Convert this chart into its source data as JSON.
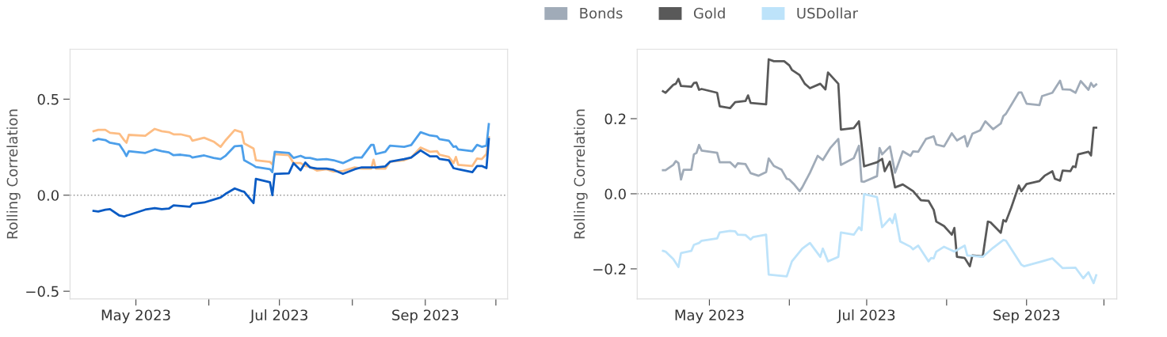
{
  "chart_data": [
    {
      "type": "line",
      "ylabel": "Rolling Correlation",
      "x": [
        "2023-04-13",
        "2023-04-15",
        "2023-04-18",
        "2023-04-20",
        "2023-04-24",
        "2023-04-26",
        "2023-04-27",
        "2023-04-28",
        "2023-05-05",
        "2023-05-09",
        "2023-05-12",
        "2023-05-15",
        "2023-05-17",
        "2023-05-20",
        "2023-05-24",
        "2023-05-25",
        "2023-05-30",
        "2023-06-03",
        "2023-06-06",
        "2023-06-08",
        "2023-06-12",
        "2023-06-15",
        "2023-06-16",
        "2023-06-20",
        "2023-06-21",
        "2023-06-27",
        "2023-06-28",
        "2023-06-29",
        "2023-07-05",
        "2023-07-07",
        "2023-07-10",
        "2023-07-12",
        "2023-07-14",
        "2023-07-17",
        "2023-07-21",
        "2023-07-24",
        "2023-07-28",
        "2023-08-02",
        "2023-08-05",
        "2023-08-09",
        "2023-08-10",
        "2023-08-11",
        "2023-08-15",
        "2023-08-17",
        "2023-08-23",
        "2023-08-26",
        "2023-08-30",
        "2023-09-03",
        "2023-09-06",
        "2023-09-07",
        "2023-09-11",
        "2023-09-13",
        "2023-09-14",
        "2023-09-15",
        "2023-09-21",
        "2023-09-23",
        "2023-09-25",
        "2023-09-27",
        "2023-09-28"
      ],
      "series": [
        {
          "color": "#fdbd84",
          "values": [
            0.333,
            0.34,
            0.34,
            0.325,
            0.32,
            0.287,
            0.273,
            0.314,
            0.309,
            0.345,
            0.333,
            0.328,
            0.317,
            0.317,
            0.305,
            0.284,
            0.299,
            0.279,
            0.252,
            0.284,
            0.339,
            0.328,
            0.27,
            0.243,
            0.182,
            0.173,
            0.16,
            0.214,
            0.208,
            0.167,
            0.167,
            0.152,
            0.148,
            0.128,
            0.135,
            0.123,
            0.126,
            0.145,
            0.138,
            0.138,
            0.185,
            0.138,
            0.138,
            0.174,
            0.182,
            0.196,
            0.248,
            0.226,
            0.229,
            0.211,
            0.199,
            0.167,
            0.199,
            0.158,
            0.152,
            0.191,
            0.188,
            0.214,
            0.302
          ]
        },
        {
          "color": "#4c9fea",
          "values": [
            0.284,
            0.293,
            0.287,
            0.273,
            0.264,
            0.226,
            0.204,
            0.229,
            0.22,
            0.238,
            0.229,
            0.223,
            0.208,
            0.211,
            0.204,
            0.196,
            0.207,
            0.194,
            0.188,
            0.204,
            0.255,
            0.258,
            0.182,
            0.155,
            0.147,
            0.135,
            0.12,
            0.226,
            0.22,
            0.194,
            0.205,
            0.194,
            0.194,
            0.185,
            0.188,
            0.182,
            0.167,
            0.196,
            0.196,
            0.262,
            0.262,
            0.214,
            0.226,
            0.258,
            0.252,
            0.261,
            0.328,
            0.311,
            0.306,
            0.292,
            0.284,
            0.252,
            0.255,
            0.238,
            0.229,
            0.262,
            0.252,
            0.258,
            0.37
          ]
        },
        {
          "color": "#0a5bc4",
          "values": [
            -0.082,
            -0.085,
            -0.076,
            -0.073,
            -0.106,
            -0.111,
            -0.106,
            -0.103,
            -0.075,
            -0.067,
            -0.073,
            -0.07,
            -0.053,
            -0.056,
            -0.06,
            -0.045,
            -0.038,
            -0.023,
            -0.012,
            0.006,
            0.035,
            0.021,
            0.018,
            -0.041,
            0.085,
            0.067,
            0.0,
            0.111,
            0.114,
            0.167,
            0.13,
            0.17,
            0.145,
            0.138,
            0.138,
            0.132,
            0.111,
            0.135,
            0.145,
            0.145,
            0.145,
            0.145,
            0.15,
            0.174,
            0.188,
            0.196,
            0.233,
            0.202,
            0.202,
            0.189,
            0.182,
            0.141,
            0.138,
            0.135,
            0.12,
            0.152,
            0.152,
            0.141,
            0.292
          ]
        }
      ],
      "xlim": [
        "2023-04-03",
        "2023-10-06"
      ],
      "xticks": [
        {
          "value": "2023-05-01",
          "label": "May 2023"
        },
        {
          "value": "2023-06-01",
          "label": null
        },
        {
          "value": "2023-07-01",
          "label": "Jul 2023"
        },
        {
          "value": "2023-08-01",
          "label": null
        },
        {
          "value": "2023-09-01",
          "label": "Sep 2023"
        },
        {
          "value": "2023-10-01",
          "label": null
        }
      ],
      "ylim": [
        -0.54,
        0.76
      ],
      "yticks": [
        0.5,
        {
          "value": 0,
          "label": "0.0"
        },
        {
          "value": -0.5,
          "label": "−0.5"
        }
      ],
      "ref_lines": [
        {
          "axis": "y",
          "value": 0,
          "label": null,
          "color": "#999999",
          "line_style": "dotted"
        }
      ]
    },
    {
      "type": "line",
      "ylabel": "Rolling Correlation",
      "legend": "top left",
      "series": [
        {
          "name": "Bonds",
          "color": "#a0abb8",
          "x": [
            "2023-04-13",
            "2023-04-14",
            "2023-04-17",
            "2023-04-18",
            "2023-04-19",
            "2023-04-20",
            "2023-04-21",
            "2023-04-24",
            "2023-04-25",
            "2023-04-26",
            "2023-04-27",
            "2023-04-28",
            "2023-05-04",
            "2023-05-05",
            "2023-05-09",
            "2023-05-11",
            "2023-05-12",
            "2023-05-15",
            "2023-05-17",
            "2023-05-20",
            "2023-05-23",
            "2023-05-24",
            "2023-05-26",
            "2023-05-29",
            "2023-05-31",
            "2023-06-01",
            "2023-06-03",
            "2023-06-05",
            "2023-06-06",
            "2023-06-09",
            "2023-06-12",
            "2023-06-14",
            "2023-06-17",
            "2023-06-20",
            "2023-06-21",
            "2023-06-26",
            "2023-06-28",
            "2023-06-29",
            "2023-06-30",
            "2023-07-05",
            "2023-07-06",
            "2023-07-07",
            "2023-07-10",
            "2023-07-12",
            "2023-07-15",
            "2023-07-18",
            "2023-07-19",
            "2023-07-21",
            "2023-07-24",
            "2023-07-27",
            "2023-07-28",
            "2023-07-31",
            "2023-08-03",
            "2023-08-05",
            "2023-08-08",
            "2023-08-09",
            "2023-08-11",
            "2023-08-14",
            "2023-08-16",
            "2023-08-19",
            "2023-08-22",
            "2023-08-23",
            "2023-08-24",
            "2023-08-29",
            "2023-08-30",
            "2023-09-01",
            "2023-09-06",
            "2023-09-07",
            "2023-09-11",
            "2023-09-14",
            "2023-09-15",
            "2023-09-18",
            "2023-09-20",
            "2023-09-22",
            "2023-09-25",
            "2023-09-26",
            "2023-09-27",
            "2023-09-28"
          ],
          "values": [
            0.063,
            0.063,
            0.077,
            0.087,
            0.082,
            0.038,
            0.064,
            0.064,
            0.105,
            0.109,
            0.13,
            0.115,
            0.109,
            0.084,
            0.084,
            0.071,
            0.081,
            0.079,
            0.055,
            0.048,
            0.058,
            0.094,
            0.074,
            0.064,
            0.04,
            0.038,
            0.024,
            0.007,
            0.017,
            0.056,
            0.101,
            0.09,
            0.123,
            0.146,
            0.077,
            0.095,
            0.128,
            0.033,
            0.032,
            0.047,
            0.122,
            0.105,
            0.126,
            0.056,
            0.113,
            0.101,
            0.113,
            0.112,
            0.146,
            0.153,
            0.131,
            0.126,
            0.161,
            0.142,
            0.154,
            0.126,
            0.16,
            0.169,
            0.193,
            0.172,
            0.187,
            0.207,
            0.213,
            0.27,
            0.27,
            0.24,
            0.236,
            0.26,
            0.269,
            0.301,
            0.278,
            0.277,
            0.269,
            0.3,
            0.277,
            0.295,
            0.285,
            0.291
          ]
        },
        {
          "name": "Gold",
          "color": "#595959",
          "x": [
            "2023-04-13",
            "2023-04-14",
            "2023-04-17",
            "2023-04-18",
            "2023-04-19",
            "2023-04-20",
            "2023-04-24",
            "2023-04-25",
            "2023-04-26",
            "2023-04-27",
            "2023-04-28",
            "2023-05-04",
            "2023-05-05",
            "2023-05-09",
            "2023-05-11",
            "2023-05-15",
            "2023-05-16",
            "2023-05-17",
            "2023-05-23",
            "2023-05-24",
            "2023-05-26",
            "2023-05-30",
            "2023-06-01",
            "2023-06-02",
            "2023-06-05",
            "2023-06-07",
            "2023-06-09",
            "2023-06-13",
            "2023-06-15",
            "2023-06-16",
            "2023-06-20",
            "2023-06-21",
            "2023-06-26",
            "2023-06-28",
            "2023-06-30",
            "2023-07-05",
            "2023-07-07",
            "2023-07-08",
            "2023-07-10",
            "2023-07-12",
            "2023-07-15",
            "2023-07-19",
            "2023-07-22",
            "2023-07-25",
            "2023-07-27",
            "2023-07-28",
            "2023-07-31",
            "2023-08-03",
            "2023-08-04",
            "2023-08-05",
            "2023-08-08",
            "2023-08-10",
            "2023-08-11",
            "2023-08-15",
            "2023-08-17",
            "2023-08-18",
            "2023-08-22",
            "2023-08-23",
            "2023-08-24",
            "2023-08-26",
            "2023-08-29",
            "2023-08-30",
            "2023-09-01",
            "2023-09-06",
            "2023-09-08",
            "2023-09-11",
            "2023-09-12",
            "2023-09-14",
            "2023-09-15",
            "2023-09-18",
            "2023-09-19",
            "2023-09-20",
            "2023-09-21",
            "2023-09-25",
            "2023-09-26",
            "2023-09-27",
            "2023-09-28"
          ],
          "values": [
            0.273,
            0.269,
            0.29,
            0.293,
            0.306,
            0.287,
            0.285,
            0.295,
            0.296,
            0.277,
            0.279,
            0.269,
            0.233,
            0.228,
            0.244,
            0.247,
            0.262,
            0.242,
            0.238,
            0.358,
            0.353,
            0.353,
            0.342,
            0.33,
            0.316,
            0.293,
            0.281,
            0.293,
            0.278,
            0.323,
            0.293,
            0.171,
            0.175,
            0.193,
            0.073,
            0.084,
            0.093,
            0.06,
            0.086,
            0.017,
            0.025,
            0.007,
            -0.017,
            -0.019,
            -0.043,
            -0.074,
            -0.086,
            -0.109,
            -0.091,
            -0.168,
            -0.171,
            -0.193,
            -0.164,
            -0.167,
            -0.074,
            -0.076,
            -0.104,
            -0.07,
            -0.074,
            -0.038,
            0.022,
            0.007,
            0.026,
            0.034,
            0.048,
            0.06,
            0.04,
            0.035,
            0.062,
            0.06,
            0.073,
            0.071,
            0.105,
            0.112,
            0.102,
            0.176,
            0.176
          ]
        },
        {
          "name": "USDollar",
          "color": "#bde3fa",
          "x": [
            "2023-04-13",
            "2023-04-14",
            "2023-04-17",
            "2023-04-19",
            "2023-04-20",
            "2023-04-24",
            "2023-04-25",
            "2023-04-27",
            "2023-04-28",
            "2023-05-04",
            "2023-05-05",
            "2023-05-09",
            "2023-05-11",
            "2023-05-12",
            "2023-05-15",
            "2023-05-17",
            "2023-05-18",
            "2023-05-23",
            "2023-05-24",
            "2023-05-31",
            "2023-06-02",
            "2023-06-06",
            "2023-06-09",
            "2023-06-13",
            "2023-06-14",
            "2023-06-16",
            "2023-06-20",
            "2023-06-21",
            "2023-06-26",
            "2023-06-28",
            "2023-06-29",
            "2023-06-30",
            "2023-07-05",
            "2023-07-07",
            "2023-07-10",
            "2023-07-11",
            "2023-07-12",
            "2023-07-14",
            "2023-07-18",
            "2023-07-19",
            "2023-07-21",
            "2023-07-25",
            "2023-07-26",
            "2023-07-27",
            "2023-07-28",
            "2023-07-31",
            "2023-08-04",
            "2023-08-08",
            "2023-08-09",
            "2023-08-15",
            "2023-08-19",
            "2023-08-23",
            "2023-08-24",
            "2023-08-30",
            "2023-08-31",
            "2023-09-07",
            "2023-09-11",
            "2023-09-15",
            "2023-09-20",
            "2023-09-23",
            "2023-09-25",
            "2023-09-27",
            "2023-09-28"
          ],
          "values": [
            -0.152,
            -0.154,
            -0.174,
            -0.195,
            -0.158,
            -0.152,
            -0.136,
            -0.131,
            -0.125,
            -0.119,
            -0.103,
            -0.099,
            -0.1,
            -0.109,
            -0.11,
            -0.122,
            -0.115,
            -0.109,
            -0.215,
            -0.22,
            -0.18,
            -0.146,
            -0.131,
            -0.168,
            -0.146,
            -0.18,
            -0.168,
            -0.103,
            -0.109,
            -0.089,
            -0.097,
            -0.001,
            -0.009,
            -0.089,
            -0.066,
            -0.078,
            -0.054,
            -0.127,
            -0.141,
            -0.148,
            -0.138,
            -0.18,
            -0.171,
            -0.172,
            -0.154,
            -0.141,
            -0.154,
            -0.138,
            -0.164,
            -0.168,
            -0.144,
            -0.123,
            -0.125,
            -0.189,
            -0.193,
            -0.18,
            -0.172,
            -0.198,
            -0.197,
            -0.225,
            -0.209,
            -0.238,
            -0.217
          ]
        }
      ],
      "xlim": [
        "2023-04-03",
        "2023-10-06"
      ],
      "xticks": [
        {
          "value": "2023-05-01",
          "label": "May 2023"
        },
        {
          "value": "2023-06-01",
          "label": null
        },
        {
          "value": "2023-07-01",
          "label": "Jul 2023"
        },
        {
          "value": "2023-08-01",
          "label": null
        },
        {
          "value": "2023-09-01",
          "label": "Sep 2023"
        },
        {
          "value": "2023-10-01",
          "label": null
        }
      ],
      "ylim": [
        -0.28,
        0.385
      ],
      "yticks": [
        0.2,
        {
          "value": 0,
          "label": "0.0"
        },
        {
          "value": -0.2,
          "label": "−0.2"
        }
      ],
      "ref_lines": [
        {
          "axis": "y",
          "value": 0,
          "label": null,
          "color": "#999999",
          "line_style": "dotted"
        }
      ]
    }
  ]
}
